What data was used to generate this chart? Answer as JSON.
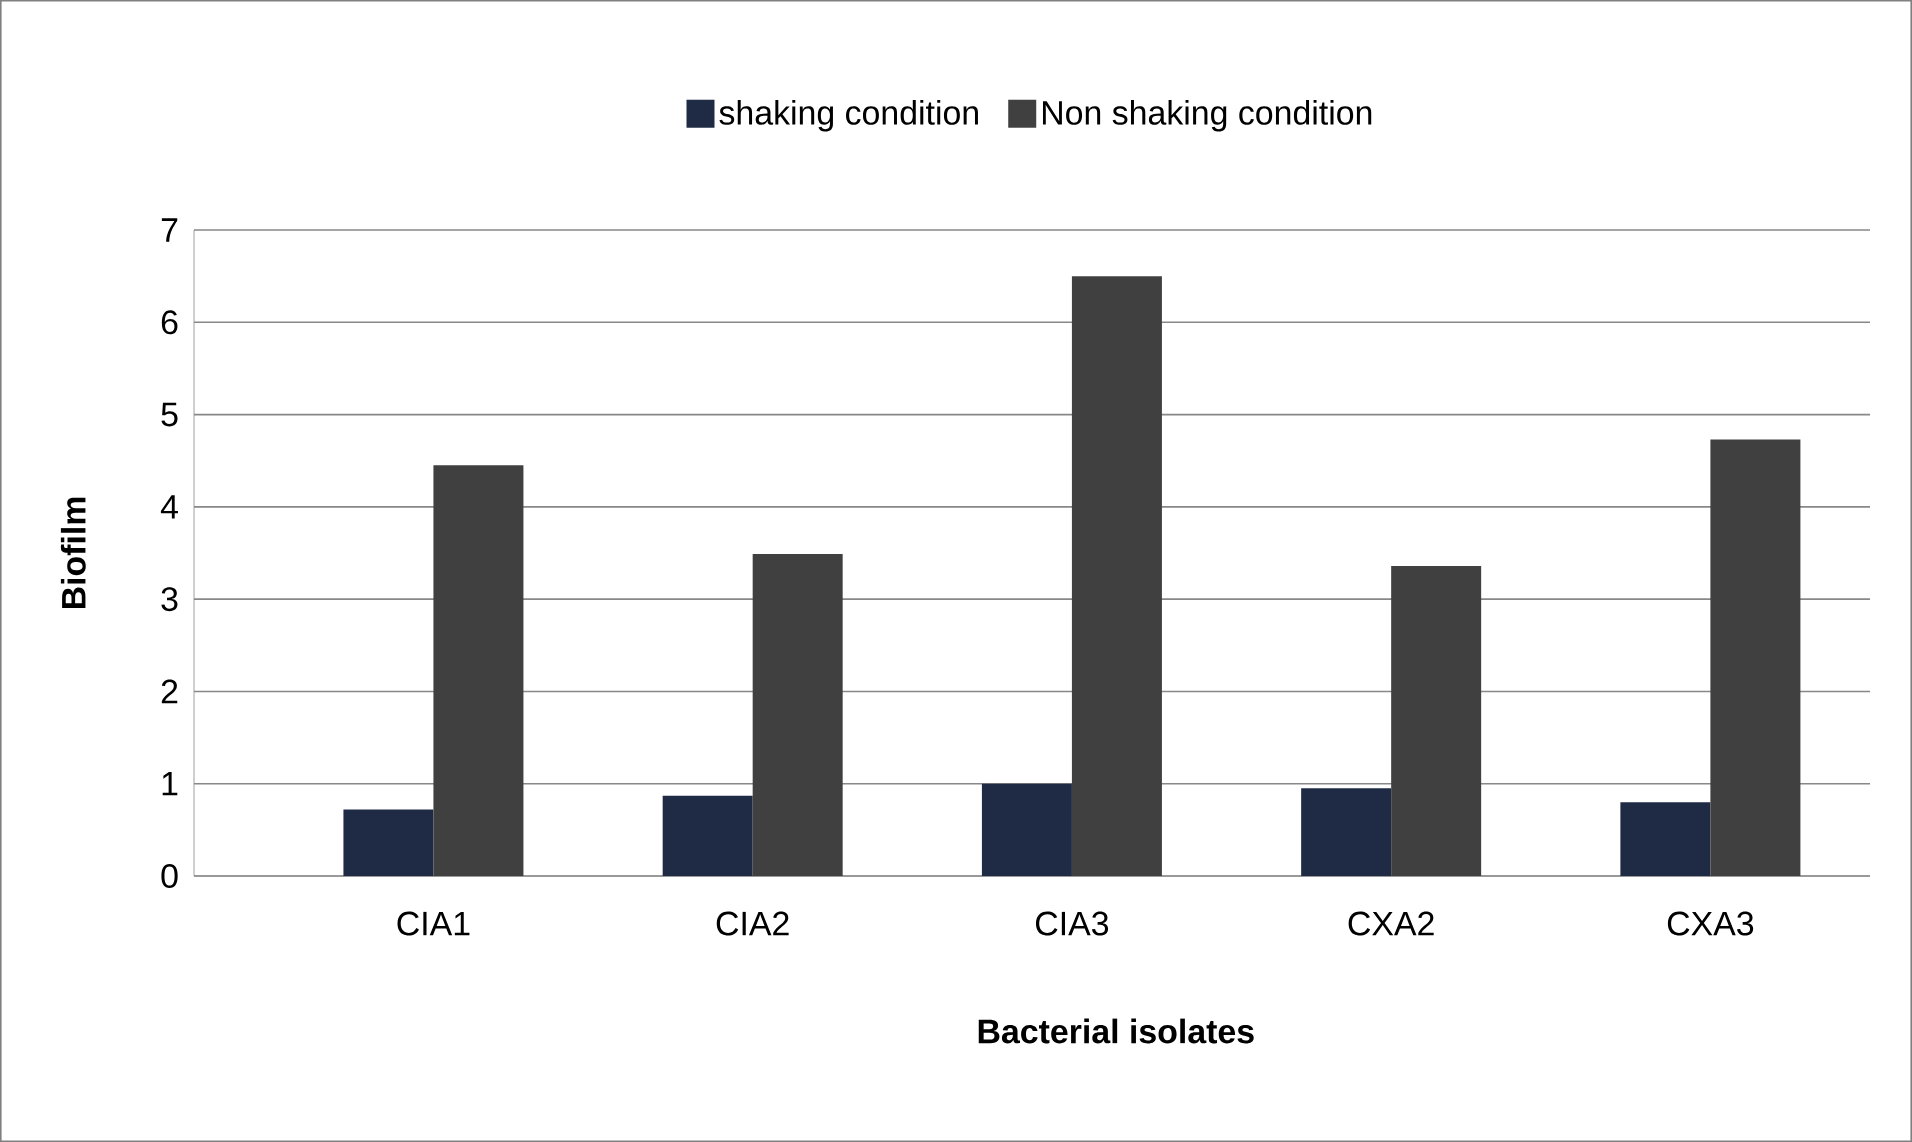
{
  "chart_data": {
    "type": "bar",
    "xlabel": "Bacterial isolates",
    "ylabel": "Biofilm",
    "categories": [
      "CIA1",
      "CIA2",
      "CIA3",
      "CXA2",
      "CXA3"
    ],
    "series": [
      {
        "name": "shaking condition",
        "color": "#1f2a44",
        "values": [
          0.72,
          0.87,
          1.0,
          0.95,
          0.8
        ]
      },
      {
        "name": "Non shaking condition",
        "color": "#404040",
        "values": [
          4.45,
          3.49,
          6.5,
          3.36,
          4.73
        ]
      }
    ],
    "ylim": [
      0,
      7
    ],
    "yticks": [
      0,
      1,
      2,
      3,
      4,
      5,
      6,
      7
    ],
    "grid": "y",
    "legend": "top"
  }
}
